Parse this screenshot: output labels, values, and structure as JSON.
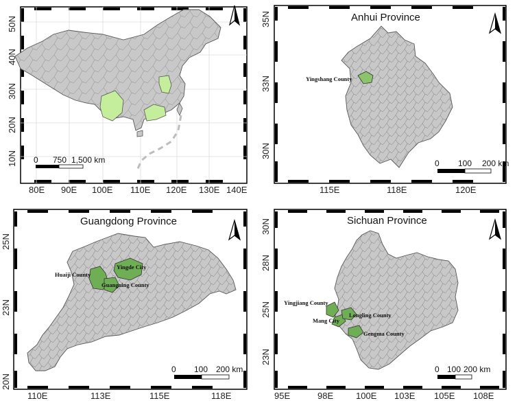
{
  "panels": [
    {
      "id": "china",
      "title": "",
      "x_ticks": [
        "80E",
        "90E",
        "100E",
        "110E",
        "120E",
        "130E",
        "140E"
      ],
      "y_ticks": [
        "10N",
        "20N",
        "30N",
        "40N",
        "50N"
      ],
      "scale": {
        "labels": [
          "0",
          "750",
          "1,500 km"
        ]
      },
      "highlight_color": "#c5ee9c",
      "region_color": "#c8c8c8"
    },
    {
      "id": "anhui",
      "title": "Anhui Province",
      "x_ticks": [
        "115E",
        "118E",
        "120E"
      ],
      "y_ticks": [
        "30N",
        "33N",
        "35N"
      ],
      "counties": [
        "Yingshang County"
      ],
      "scale": {
        "labels": [
          "0",
          "100",
          "200 km"
        ]
      },
      "highlight_color": "#8bc46a"
    },
    {
      "id": "guangdong",
      "title": "Guangdong Province",
      "x_ticks": [
        "110E",
        "113E",
        "115E",
        "118E"
      ],
      "y_ticks": [
        "20N",
        "23N",
        "25N"
      ],
      "counties": [
        "Huaiji County",
        "Yingde City",
        "Guangning County"
      ],
      "scale": {
        "labels": [
          "0",
          "100",
          "200 km"
        ]
      },
      "highlight_color": "#6fae55"
    },
    {
      "id": "sichuan",
      "title": "Sichuan Province",
      "x_ticks": [
        "95E",
        "98E",
        "100E",
        "103E",
        "105E",
        "108E"
      ],
      "y_ticks": [
        "23N",
        "25N",
        "28N",
        "30N"
      ],
      "counties": [
        "Yingjiang County",
        "Mang City",
        "Longling County",
        "Gengma County"
      ],
      "scale": {
        "labels": [
          "0",
          "100",
          "200 km"
        ]
      },
      "highlight_color": "#6fae55"
    }
  ]
}
